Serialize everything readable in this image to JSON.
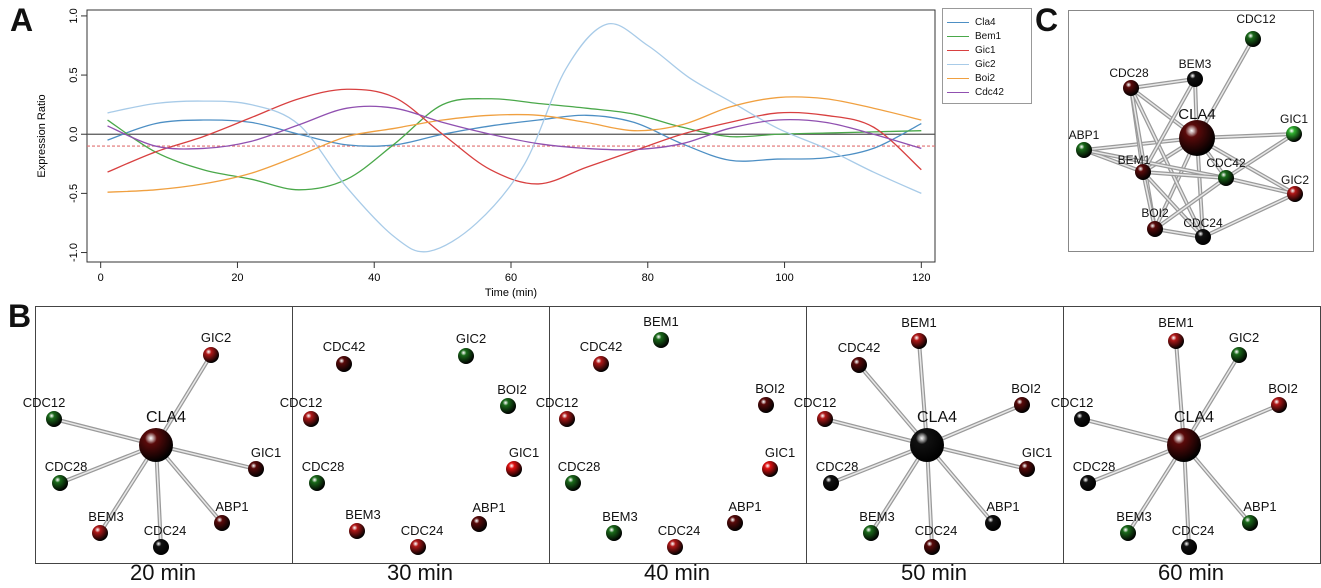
{
  "panel_labels": {
    "a": "A",
    "b": "B",
    "c": "C"
  },
  "colors": {
    "Cla4": "#4d8fc4",
    "Bem1": "#4aa84a",
    "Gic1": "#d84040",
    "Gic2": "#a8cbe8",
    "Boi2": "#f0a040",
    "Cdc42": "#9050b0",
    "zero_line": "#555555",
    "threshold_line": "#e07070",
    "node_red": "#b01818",
    "node_darkred": "#5a0a0a",
    "node_green": "#1a6a1a",
    "node_brightgreen": "#30b030",
    "node_black": "#111111",
    "node_brightred": "#e01010"
  },
  "chart_data": {
    "type": "line",
    "xlabel": "Time (min)",
    "ylabel": "Expression Ratio",
    "xlim": [
      -2,
      122
    ],
    "ylim": [
      -1.08,
      1.05
    ],
    "xticks": [
      0,
      20,
      40,
      60,
      80,
      100,
      120
    ],
    "yticks": [
      -1.0,
      -0.5,
      0.0,
      0.5,
      1.0
    ],
    "ytick_labels": [
      "-1.0",
      "-0.5",
      "0.0",
      "0.5",
      "1.0"
    ],
    "reference_lines": [
      {
        "y": 0.0,
        "style": "solid"
      },
      {
        "y": -0.1,
        "style": "dashed"
      }
    ],
    "legend_position": "top-right-outside",
    "series": [
      {
        "name": "Cla4",
        "x": [
          1,
          8,
          15,
          22,
          29,
          36,
          43,
          50,
          57,
          64,
          71,
          78,
          85,
          92,
          99,
          106,
          113,
          120
        ],
        "y": [
          -0.05,
          0.09,
          0.12,
          0.1,
          0.0,
          -0.09,
          -0.09,
          0.0,
          0.07,
          0.12,
          0.16,
          0.1,
          -0.08,
          -0.22,
          -0.21,
          -0.2,
          -0.12,
          0.09
        ]
      },
      {
        "name": "Bem1",
        "x": [
          1,
          8,
          15,
          22,
          29,
          36,
          43,
          50,
          57,
          64,
          71,
          78,
          85,
          92,
          99,
          106,
          113,
          120
        ],
        "y": [
          0.12,
          -0.15,
          -0.3,
          -0.38,
          -0.47,
          -0.38,
          -0.08,
          0.25,
          0.3,
          0.26,
          0.22,
          0.17,
          0.06,
          -0.02,
          0.0,
          0.01,
          0.02,
          0.03
        ]
      },
      {
        "name": "Gic1",
        "x": [
          1,
          8,
          15,
          22,
          29,
          36,
          43,
          50,
          57,
          64,
          71,
          78,
          85,
          92,
          99,
          106,
          113,
          120
        ],
        "y": [
          -0.32,
          -0.15,
          -0.02,
          0.14,
          0.3,
          0.38,
          0.31,
          0.0,
          -0.3,
          -0.42,
          -0.28,
          -0.14,
          0.0,
          0.1,
          0.18,
          0.16,
          0.06,
          -0.3
        ]
      },
      {
        "name": "Gic2",
        "x": [
          1,
          8,
          15,
          22,
          29,
          36,
          43,
          48,
          55,
          62,
          68,
          74,
          80,
          86,
          92,
          99,
          106,
          113,
          120
        ],
        "y": [
          0.18,
          0.26,
          0.28,
          0.25,
          0.08,
          -0.45,
          -0.87,
          -0.99,
          -0.75,
          -0.25,
          0.55,
          0.93,
          0.75,
          0.48,
          0.28,
          0.05,
          -0.12,
          -0.32,
          -0.5
        ]
      },
      {
        "name": "Boi2",
        "x": [
          1,
          8,
          15,
          22,
          29,
          36,
          43,
          50,
          57,
          64,
          71,
          78,
          85,
          92,
          99,
          106,
          113,
          120
        ],
        "y": [
          -0.49,
          -0.47,
          -0.42,
          -0.33,
          -0.18,
          -0.02,
          0.05,
          0.12,
          0.16,
          0.16,
          0.1,
          0.03,
          0.08,
          0.23,
          0.31,
          0.3,
          0.22,
          0.12
        ]
      },
      {
        "name": "Cdc42",
        "x": [
          1,
          8,
          15,
          22,
          29,
          36,
          43,
          50,
          57,
          64,
          71,
          78,
          85,
          92,
          99,
          106,
          113,
          120
        ],
        "y": [
          0.07,
          -0.1,
          -0.12,
          -0.06,
          0.08,
          0.22,
          0.22,
          0.1,
          0.0,
          -0.08,
          -0.12,
          -0.13,
          -0.08,
          0.05,
          0.12,
          0.1,
          0.0,
          -0.12
        ]
      }
    ]
  },
  "network_c": {
    "nodes": [
      {
        "id": "CLA4",
        "label": "CLA4",
        "color": "node_darkred",
        "size": "large"
      },
      {
        "id": "CDC12",
        "label": "CDC12",
        "color": "node_green"
      },
      {
        "id": "BEM3",
        "label": "BEM3",
        "color": "node_black"
      },
      {
        "id": "CDC28",
        "label": "CDC28",
        "color": "node_darkred"
      },
      {
        "id": "GIC1",
        "label": "GIC1",
        "color": "node_brightgreen"
      },
      {
        "id": "ABP1",
        "label": "ABP1",
        "color": "node_green"
      },
      {
        "id": "BEM1",
        "label": "BEM1",
        "color": "node_darkred"
      },
      {
        "id": "CDC42",
        "label": "CDC42",
        "color": "node_green"
      },
      {
        "id": "GIC2",
        "label": "GIC2",
        "color": "node_red"
      },
      {
        "id": "BOI2",
        "label": "BOI2",
        "color": "node_darkred"
      },
      {
        "id": "CDC24",
        "label": "CDC24",
        "color": "node_black"
      }
    ],
    "edges": [
      [
        "CLA4",
        "CDC12"
      ],
      [
        "CLA4",
        "BEM3"
      ],
      [
        "CLA4",
        "CDC28"
      ],
      [
        "CLA4",
        "GIC1"
      ],
      [
        "CLA4",
        "ABP1"
      ],
      [
        "CLA4",
        "BEM1"
      ],
      [
        "CLA4",
        "CDC42"
      ],
      [
        "CLA4",
        "GIC2"
      ],
      [
        "CLA4",
        "BOI2"
      ],
      [
        "CLA4",
        "CDC24"
      ],
      [
        "CDC28",
        "BEM3"
      ],
      [
        "CDC28",
        "BEM1"
      ],
      [
        "CDC28",
        "BOI2"
      ],
      [
        "CDC28",
        "CDC24"
      ],
      [
        "ABP1",
        "BEM1"
      ],
      [
        "ABP1",
        "CDC42"
      ],
      [
        "BEM1",
        "BOI2"
      ],
      [
        "BEM1",
        "CDC24"
      ],
      [
        "BEM1",
        "CDC42"
      ],
      [
        "CDC42",
        "GIC2"
      ],
      [
        "CDC42",
        "BOI2"
      ],
      [
        "GIC1",
        "CDC42"
      ],
      [
        "BOI2",
        "CDC24"
      ],
      [
        "CDC24",
        "GIC2"
      ],
      [
        "BEM3",
        "BEM1"
      ]
    ]
  },
  "networks_b": [
    {
      "time_label": "20 min",
      "hub": {
        "label": "CLA4",
        "color": "node_darkred",
        "size": 1.0
      },
      "nodes": [
        {
          "label": "GIC2",
          "color": "node_red",
          "edge": true
        },
        {
          "label": "CDC12",
          "color": "node_green",
          "edge": true
        },
        {
          "label": "GIC1",
          "color": "node_darkred",
          "edge": true
        },
        {
          "label": "CDC28",
          "color": "node_green",
          "edge": true
        },
        {
          "label": "ABP1",
          "color": "node_darkred",
          "edge": true
        },
        {
          "label": "BEM3",
          "color": "node_red",
          "edge": true
        },
        {
          "label": "CDC24",
          "color": "node_black",
          "edge": true
        }
      ]
    },
    {
      "time_label": "30 min",
      "hub": null,
      "nodes": [
        {
          "label": "CDC42",
          "color": "node_darkred",
          "edge": false
        },
        {
          "label": "GIC2",
          "color": "node_green",
          "edge": false
        },
        {
          "label": "BOI2",
          "color": "node_green",
          "edge": false
        },
        {
          "label": "CDC12",
          "color": "node_red",
          "edge": false
        },
        {
          "label": "GIC1",
          "color": "node_brightred",
          "edge": false
        },
        {
          "label": "CDC28",
          "color": "node_green",
          "edge": false
        },
        {
          "label": "ABP1",
          "color": "node_darkred",
          "edge": false
        },
        {
          "label": "BEM3",
          "color": "node_red",
          "edge": false
        },
        {
          "label": "CDC24",
          "color": "node_red",
          "edge": false
        }
      ]
    },
    {
      "time_label": "40 min",
      "hub": null,
      "nodes": [
        {
          "label": "BEM1",
          "color": "node_green",
          "edge": false
        },
        {
          "label": "CDC42",
          "color": "node_red",
          "edge": false
        },
        {
          "label": "BOI2",
          "color": "node_darkred",
          "edge": false
        },
        {
          "label": "CDC12",
          "color": "node_red",
          "edge": false
        },
        {
          "label": "GIC1",
          "color": "node_brightred",
          "edge": false
        },
        {
          "label": "CDC28",
          "color": "node_green",
          "edge": false
        },
        {
          "label": "ABP1",
          "color": "node_darkred",
          "edge": false
        },
        {
          "label": "BEM3",
          "color": "node_green",
          "edge": false
        },
        {
          "label": "CDC24",
          "color": "node_red",
          "edge": false
        }
      ]
    },
    {
      "time_label": "50 min",
      "hub": {
        "label": "CLA4",
        "color": "node_black",
        "size": 1.0
      },
      "nodes": [
        {
          "label": "BEM1",
          "color": "node_red",
          "edge": true
        },
        {
          "label": "CDC42",
          "color": "node_darkred",
          "edge": true
        },
        {
          "label": "BOI2",
          "color": "node_darkred",
          "edge": true
        },
        {
          "label": "CDC12",
          "color": "node_red",
          "edge": true
        },
        {
          "label": "GIC1",
          "color": "node_darkred",
          "edge": true
        },
        {
          "label": "CDC28",
          "color": "node_black",
          "edge": true
        },
        {
          "label": "ABP1",
          "color": "node_black",
          "edge": true
        },
        {
          "label": "BEM3",
          "color": "node_green",
          "edge": true
        },
        {
          "label": "CDC24",
          "color": "node_darkred",
          "edge": true
        }
      ]
    },
    {
      "time_label": "60 min",
      "hub": {
        "label": "CLA4",
        "color": "node_darkred",
        "size": 1.0
      },
      "nodes": [
        {
          "label": "BEM1",
          "color": "node_red",
          "edge": true
        },
        {
          "label": "GIC2",
          "color": "node_green",
          "edge": true
        },
        {
          "label": "BOI2",
          "color": "node_red",
          "edge": true
        },
        {
          "label": "CDC12",
          "color": "node_black",
          "edge": true
        },
        {
          "label": "CDC28",
          "color": "node_black",
          "edge": true
        },
        {
          "label": "ABP1",
          "color": "node_green",
          "edge": true
        },
        {
          "label": "BEM3",
          "color": "node_green",
          "edge": true
        },
        {
          "label": "CDC24",
          "color": "node_black",
          "edge": true
        }
      ]
    }
  ]
}
